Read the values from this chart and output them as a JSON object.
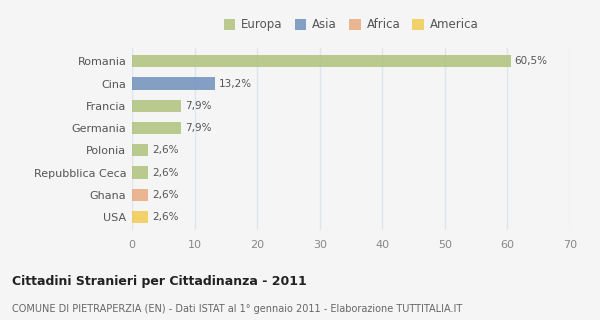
{
  "categories": [
    "Romania",
    "Cina",
    "Francia",
    "Germania",
    "Polonia",
    "Repubblica Ceca",
    "Ghana",
    "USA"
  ],
  "values": [
    60.5,
    13.2,
    7.9,
    7.9,
    2.6,
    2.6,
    2.6,
    2.6
  ],
  "labels": [
    "60,5%",
    "13,2%",
    "7,9%",
    "7,9%",
    "2,6%",
    "2,6%",
    "2,6%",
    "2,6%"
  ],
  "bar_colors": [
    "#adc178",
    "#6b8cba",
    "#adc178",
    "#adc178",
    "#adc178",
    "#adc178",
    "#e8a87c",
    "#f2c94c"
  ],
  "legend_items": [
    {
      "label": "Europa",
      "color": "#adc178"
    },
    {
      "label": "Asia",
      "color": "#6b8cba"
    },
    {
      "label": "Africa",
      "color": "#e8a87c"
    },
    {
      "label": "America",
      "color": "#f2c94c"
    }
  ],
  "xlim": [
    0,
    70
  ],
  "xticks": [
    0,
    10,
    20,
    30,
    40,
    50,
    60,
    70
  ],
  "title": "Cittadini Stranieri per Cittadinanza - 2011",
  "subtitle": "COMUNE DI PIETRAPERZIA (EN) - Dati ISTAT al 1° gennaio 2011 - Elaborazione TUTTITALIA.IT",
  "background_color": "#f5f5f5",
  "grid_color": "#e0e4ec",
  "bar_alpha": 0.82,
  "bar_height": 0.55
}
